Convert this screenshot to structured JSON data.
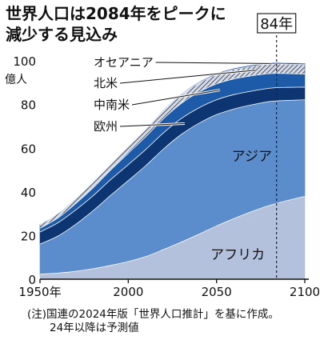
{
  "chart_data": {
    "type": "area",
    "title_lines": [
      "世界人口は2084年をピークに",
      "減少する見込み"
    ],
    "peak_label": "84年",
    "y_unit": "億人",
    "ylim": [
      0,
      103
    ],
    "y_ticks": [
      "0",
      "20",
      "40",
      "60",
      "80",
      "100"
    ],
    "xlim": [
      1950,
      2100
    ],
    "x_ticks": [
      {
        "value": 1950,
        "label": "1950年"
      },
      {
        "value": 2000,
        "label": "2000"
      },
      {
        "value": 2050,
        "label": "2050"
      },
      {
        "value": 2100,
        "label": "2100"
      }
    ],
    "peak_year": 2084,
    "stacked": true,
    "x": [
      1950,
      1960,
      1970,
      1980,
      1990,
      2000,
      2010,
      2020,
      2030,
      2040,
      2050,
      2060,
      2070,
      2080,
      2084,
      2090,
      2100
    ],
    "series": [
      {
        "name": "アフリカ",
        "color": "#b4c1dd",
        "values": [
          2.3,
          2.8,
          3.6,
          4.8,
          6.3,
          8.1,
          10.4,
          13.6,
          17.0,
          20.6,
          24.4,
          27.8,
          31.0,
          33.8,
          34.7,
          36.0,
          38.0
        ]
      },
      {
        "name": "アジア",
        "color": "#5b8ccc",
        "values": [
          13.8,
          16.9,
          21.4,
          26.5,
          32.1,
          37.1,
          41.7,
          46.1,
          49.3,
          50.8,
          51.0,
          50.2,
          48.9,
          47.6,
          47.0,
          45.9,
          44.2
        ]
      },
      {
        "name": "欧州",
        "color": "#0d3572",
        "values": [
          5.5,
          6.1,
          6.6,
          6.9,
          7.2,
          7.3,
          7.4,
          7.4,
          7.3,
          7.1,
          6.8,
          6.6,
          6.3,
          6.1,
          6.1,
          6.0,
          5.8
        ]
      },
      {
        "name": "中南米",
        "color": "#1d5aa7",
        "values": [
          1.7,
          2.2,
          2.9,
          3.6,
          4.4,
          5.2,
          5.9,
          6.5,
          6.9,
          7.2,
          7.3,
          7.2,
          7.0,
          6.7,
          6.5,
          6.3,
          6.0
        ]
      },
      {
        "name": "北米",
        "color": "#9aa6b8",
        "pattern": "hatch",
        "values": [
          1.7,
          2.0,
          2.3,
          2.5,
          2.8,
          3.1,
          3.4,
          3.7,
          3.9,
          4.1,
          4.2,
          4.3,
          4.3,
          4.3,
          4.3,
          4.3,
          4.3
        ]
      },
      {
        "name": "オセアニア",
        "color": "#2a55a6",
        "values": [
          0.13,
          0.16,
          0.2,
          0.23,
          0.27,
          0.31,
          0.37,
          0.44,
          0.5,
          0.55,
          0.59,
          0.62,
          0.65,
          0.67,
          0.68,
          0.69,
          0.7
        ]
      }
    ],
    "legend_placement": "left, with leader lines into areas",
    "grid": false,
    "note_lines": [
      "(注)国連の2024年版「世界人口推計」を基に作成。",
      "24年以降は予測値"
    ]
  }
}
